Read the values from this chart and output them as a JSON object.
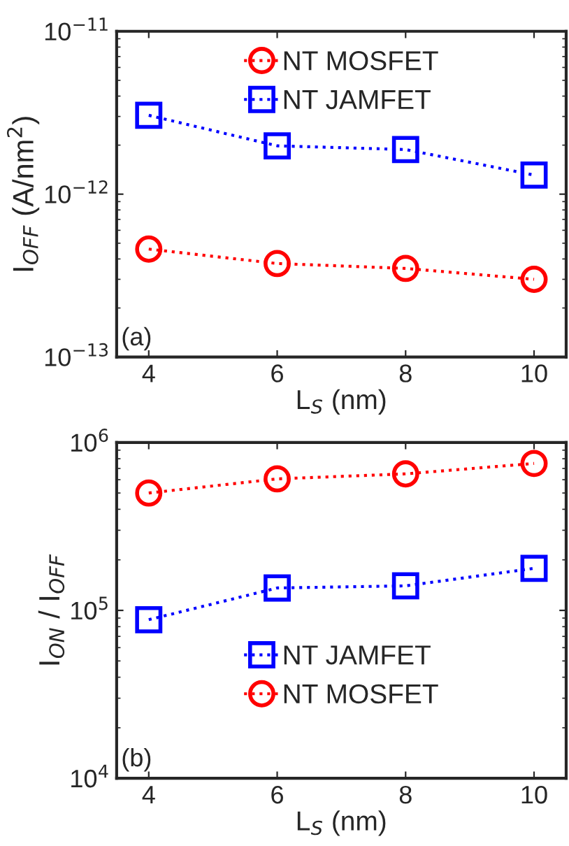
{
  "chart_data": [
    {
      "type": "line",
      "xlabel": "L$_{S}$ (nm)",
      "ylabel": "I$_{OFF}$ (A/nm$^{2}$)",
      "log": true,
      "grid": false,
      "legend": "top",
      "line_style": "dotted",
      "x": [
        4,
        6,
        8,
        10
      ],
      "xlim": [
        3.5,
        10.5
      ],
      "xticks": [
        4,
        6,
        8,
        10
      ],
      "ylim": [
        1e-13,
        1e-11
      ],
      "yticks": [
        {
          "value": 1e-13,
          "label": "10$^{−13}$"
        },
        {
          "value": 1e-12,
          "label": "10$^{−12}$"
        },
        {
          "value": 1e-11,
          "label": "10$^{−11}$"
        }
      ],
      "annotations": [
        "(a)"
      ],
      "series": [
        {
          "name": "NT MOSFET",
          "color": "#ff0000",
          "marker": "circle",
          "values": [
            4.6e-13,
            3.75e-13,
            3.5e-13,
            3e-13
          ]
        },
        {
          "name": "NT JAMFET",
          "color": "#0000ff",
          "marker": "square",
          "values": [
            3.05e-12,
            1.98e-12,
            1.88e-12,
            1.31e-12
          ]
        }
      ]
    },
    {
      "type": "line",
      "xlabel": "L$_{S}$ (nm)",
      "ylabel": "I$_{ON}$ / I$_{OFF}$",
      "log": true,
      "grid": false,
      "legend": "bottom",
      "line_style": "dotted",
      "x": [
        4,
        6,
        8,
        10
      ],
      "xlim": [
        3.5,
        10.5
      ],
      "xticks": [
        4,
        6,
        8,
        10
      ],
      "ylim": [
        10000.0,
        1000000.0
      ],
      "yticks": [
        {
          "value": 10000,
          "label": "10$^{4}$"
        },
        {
          "value": 100000,
          "label": "10$^{5}$"
        },
        {
          "value": 1000000,
          "label": "10$^{6}$"
        }
      ],
      "annotations": [
        "(b)"
      ],
      "series": [
        {
          "name": "NT JAMFET",
          "color": "#0000ff",
          "marker": "square",
          "values": [
            88000,
            136000,
            140000,
            178000
          ]
        },
        {
          "name": "NT MOSFET",
          "color": "#ff0000",
          "marker": "circle",
          "values": [
            500000,
            607000,
            650000,
            750000
          ]
        }
      ]
    }
  ]
}
